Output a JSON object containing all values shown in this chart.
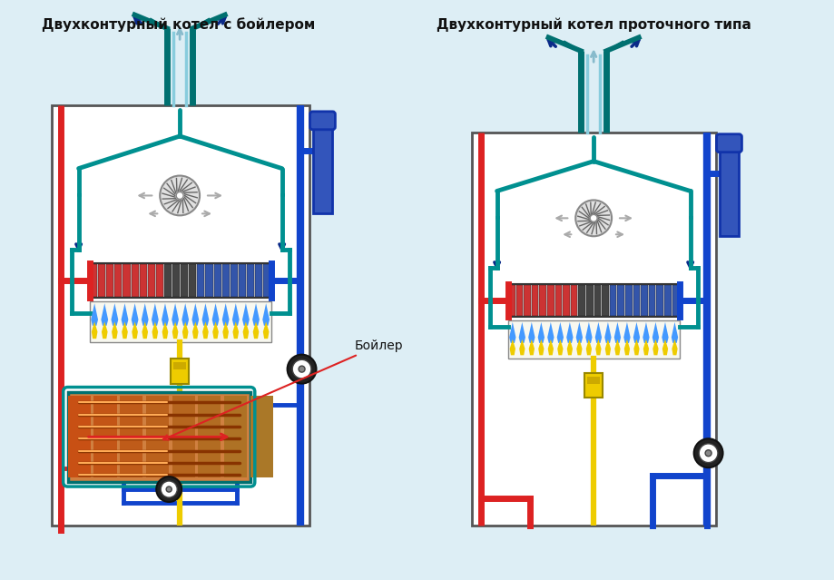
{
  "title_left": "Двухконтурный котел с бойлером",
  "title_right": "Двухконтурный котел проточного типа",
  "boiler_label": "Бойлер",
  "bg_color": "#ddeef5",
  "box_bg": "#ffffff",
  "red": "#dd2222",
  "blue": "#1144cc",
  "dark_blue": "#0a2a88",
  "teal": "#007070",
  "teal2": "#009090",
  "yellow": "#eecc00",
  "gray": "#aaaaaa",
  "dark_gray": "#555555",
  "black": "#111111",
  "title_fs": 11,
  "label_fs": 10
}
